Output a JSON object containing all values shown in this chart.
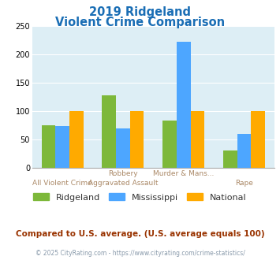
{
  "title_line1": "2019 Ridgeland",
  "title_line2": "Violent Crime Comparison",
  "cat_labels_top": [
    "",
    "Robbery",
    "Murder & Mans...",
    ""
  ],
  "cat_labels_bot": [
    "All Violent Crime",
    "Aggravated Assault",
    "",
    "Rape"
  ],
  "series": {
    "Ridgeland": [
      75,
      128,
      83,
      30
    ],
    "Mississippi": [
      73,
      69,
      222,
      60
    ],
    "National": [
      100,
      100,
      100,
      100
    ]
  },
  "colors": {
    "Ridgeland": "#7db83a",
    "Mississippi": "#4da6ff",
    "National": "#ffaa00"
  },
  "ylim": [
    0,
    250
  ],
  "yticks": [
    0,
    50,
    100,
    150,
    200,
    250
  ],
  "plot_background": "#ddeef5",
  "title_color": "#1a6eb5",
  "xlabel_top_color": "#cc9966",
  "xlabel_bot_color": "#cc9966",
  "legend_label_color": "#333333",
  "footer_text": "Compared to U.S. average. (U.S. average equals 100)",
  "footer_color": "#993300",
  "credit_text": "© 2025 CityRating.com - https://www.cityrating.com/crime-statistics/",
  "credit_color": "#8899aa"
}
